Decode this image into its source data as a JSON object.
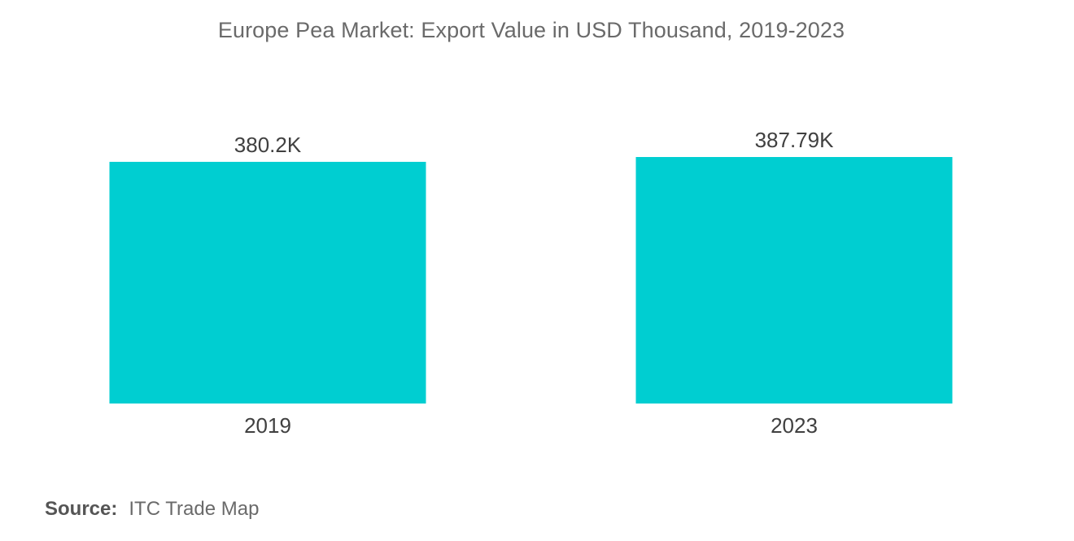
{
  "chart_data": {
    "type": "bar",
    "title": "Europe Pea Market: Export Value in USD Thousand, 2019-2023",
    "categories": [
      "2019",
      "2023"
    ],
    "values": [
      380.2,
      387.79
    ],
    "value_labels": [
      "380.2K",
      "387.79K"
    ],
    "xlabel": "",
    "ylabel": "",
    "ylim": [
      0,
      387.79
    ],
    "grid": false,
    "bar_color": "#00ced1"
  },
  "source": {
    "label": "Source:",
    "text": "ITC Trade Map"
  }
}
